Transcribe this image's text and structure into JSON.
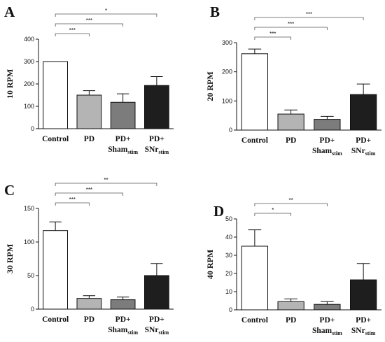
{
  "chart_data": [
    {
      "type": "bar",
      "panel": "A",
      "ylabel": "10 RPM",
      "ylim": [
        0,
        400
      ],
      "yticks": [
        0,
        100,
        200,
        300,
        400
      ],
      "categories": [
        {
          "main": "Control",
          "sub": ""
        },
        {
          "main": "PD",
          "sub": ""
        },
        {
          "main": "PD+",
          "line2": "Sham",
          "sub": "stim"
        },
        {
          "main": "PD+",
          "line2": "SNr",
          "sub": "stim"
        }
      ],
      "values": [
        300,
        150,
        118,
        193
      ],
      "errors": [
        0,
        20,
        38,
        40
      ],
      "colors": [
        "#ffffff",
        "#b4b4b4",
        "#7c7c7c",
        "#1e1e1e"
      ],
      "significance": [
        {
          "from": 0,
          "to": 1,
          "label": "***"
        },
        {
          "from": 0,
          "to": 2,
          "label": "***"
        },
        {
          "from": 0,
          "to": 3,
          "label": "*"
        }
      ]
    },
    {
      "type": "bar",
      "panel": "B",
      "ylabel": "20 RPM",
      "ylim": [
        0,
        300
      ],
      "yticks": [
        0,
        100,
        200,
        300
      ],
      "categories": [
        {
          "main": "Control",
          "sub": ""
        },
        {
          "main": "PD",
          "sub": ""
        },
        {
          "main": "PD+",
          "line2": "Sham",
          "sub": "stim"
        },
        {
          "main": "PD+",
          "line2": "SNr",
          "sub": "stim"
        }
      ],
      "values": [
        262,
        55,
        37,
        122
      ],
      "errors": [
        16,
        14,
        10,
        36
      ],
      "colors": [
        "#ffffff",
        "#b4b4b4",
        "#7c7c7c",
        "#1e1e1e"
      ],
      "significance": [
        {
          "from": 0,
          "to": 1,
          "label": "***"
        },
        {
          "from": 0,
          "to": 2,
          "label": "***"
        },
        {
          "from": 0,
          "to": 3,
          "label": "***"
        }
      ]
    },
    {
      "type": "bar",
      "panel": "C",
      "ylabel": "30 RPM",
      "ylim": [
        0,
        150
      ],
      "yticks": [
        0,
        50,
        100,
        150
      ],
      "categories": [
        {
          "main": "Control",
          "sub": ""
        },
        {
          "main": "PD",
          "sub": ""
        },
        {
          "main": "PD+",
          "line2": "Sham",
          "sub": "stim"
        },
        {
          "main": "PD+",
          "line2": "SNr",
          "sub": "stim"
        }
      ],
      "values": [
        117,
        16,
        14,
        50
      ],
      "errors": [
        13,
        4,
        4,
        18
      ],
      "colors": [
        "#ffffff",
        "#b4b4b4",
        "#7c7c7c",
        "#1e1e1e"
      ],
      "significance": [
        {
          "from": 0,
          "to": 1,
          "label": "***"
        },
        {
          "from": 0,
          "to": 2,
          "label": "***"
        },
        {
          "from": 0,
          "to": 3,
          "label": "**"
        }
      ]
    },
    {
      "type": "bar",
      "panel": "D",
      "ylabel": "40 RPM",
      "ylim": [
        0,
        50
      ],
      "yticks": [
        0,
        10,
        20,
        30,
        40,
        50
      ],
      "categories": [
        {
          "main": "Control",
          "sub": ""
        },
        {
          "main": "PD",
          "sub": ""
        },
        {
          "main": "PD+",
          "line2": "Sham",
          "sub": "stim"
        },
        {
          "main": "PD+",
          "line2": "SNr",
          "sub": "stim"
        }
      ],
      "values": [
        35,
        4.5,
        3,
        16.5
      ],
      "errors": [
        9,
        1.5,
        1.5,
        9
      ],
      "colors": [
        "#ffffff",
        "#b4b4b4",
        "#7c7c7c",
        "#1e1e1e"
      ],
      "significance": [
        {
          "from": 0,
          "to": 1,
          "label": "*"
        },
        {
          "from": 0,
          "to": 2,
          "label": "**"
        }
      ]
    }
  ]
}
